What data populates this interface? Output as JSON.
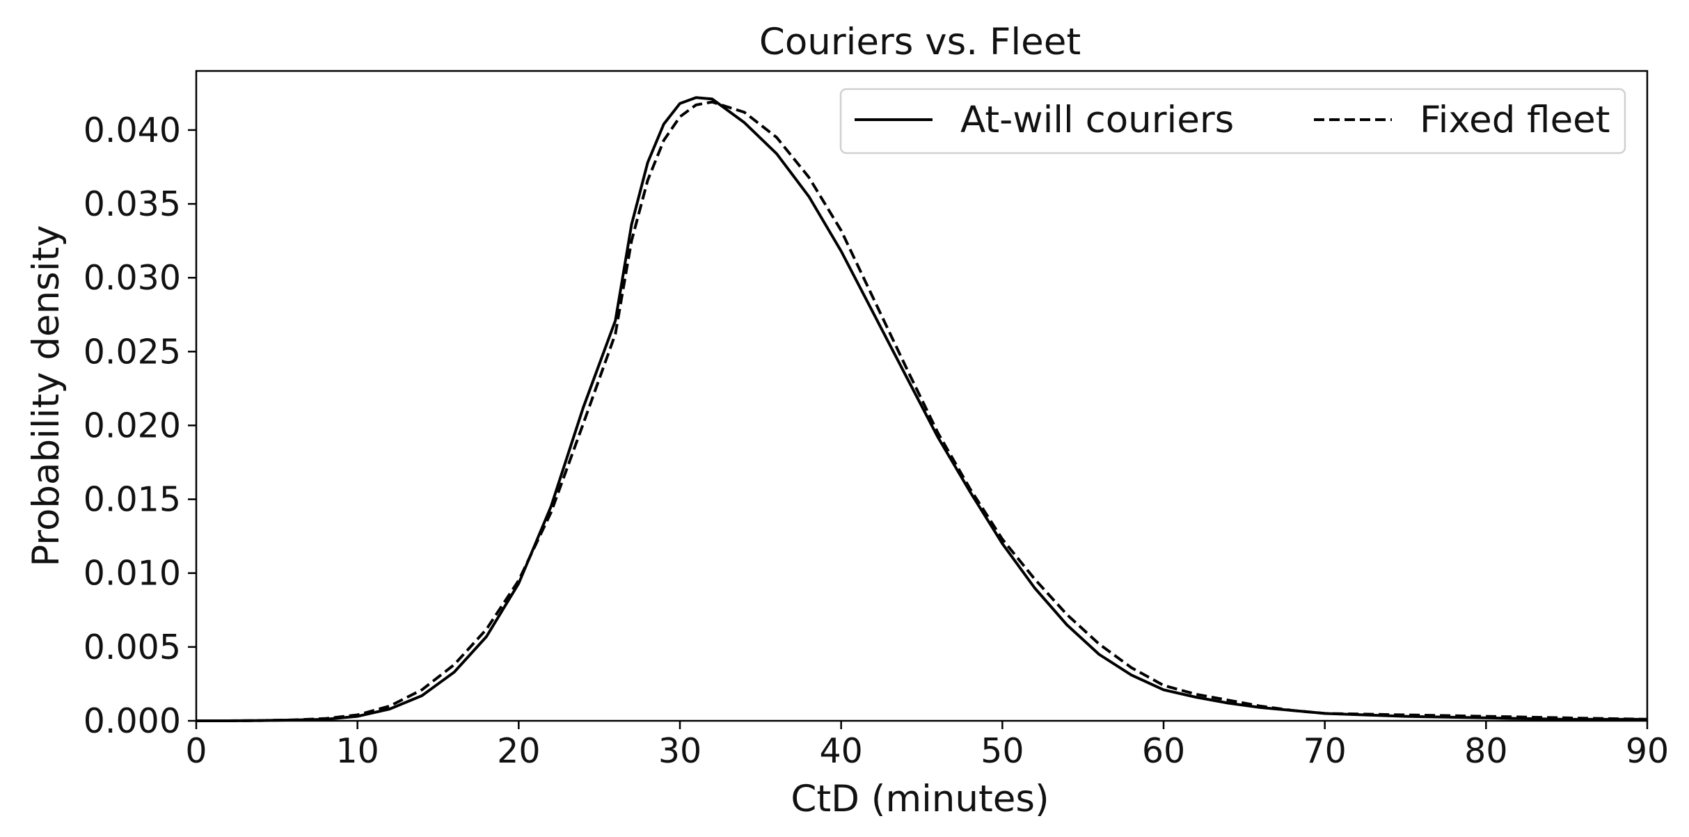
{
  "chart_data": {
    "type": "line",
    "title": "Couriers vs. Fleet",
    "xlabel": "CtD (minutes)",
    "ylabel": "Probability density",
    "xlim": [
      0,
      90
    ],
    "ylim": [
      0,
      0.044
    ],
    "xticks": [
      0,
      10,
      20,
      30,
      40,
      50,
      60,
      70,
      80,
      90
    ],
    "xtick_labels": [
      "0",
      "10",
      "20",
      "30",
      "40",
      "50",
      "60",
      "70",
      "80",
      "90"
    ],
    "yticks": [
      0,
      0.005,
      0.01,
      0.015,
      0.02,
      0.025,
      0.03,
      0.035,
      0.04
    ],
    "ytick_labels": [
      "0.000",
      "0.005",
      "0.010",
      "0.015",
      "0.020",
      "0.025",
      "0.030",
      "0.035",
      "0.040"
    ],
    "grid": false,
    "legend_position": "top-right",
    "series": [
      {
        "name": "At-will couriers",
        "style": "solid",
        "color": "#000000",
        "x": [
          0,
          2,
          4,
          6,
          8,
          10,
          12,
          14,
          16,
          18,
          20,
          22,
          24,
          26,
          27,
          28,
          29,
          30,
          31,
          32,
          34,
          36,
          38,
          40,
          42,
          44,
          46,
          48,
          50,
          52,
          54,
          56,
          58,
          60,
          62,
          64,
          66,
          68,
          70,
          75,
          80,
          85,
          90
        ],
        "y": [
          0,
          0,
          2e-05,
          5e-05,
          0.0001,
          0.0003,
          0.0008,
          0.0017,
          0.0033,
          0.0057,
          0.0093,
          0.0145,
          0.0212,
          0.0271,
          0.0336,
          0.0378,
          0.0404,
          0.0418,
          0.0422,
          0.0421,
          0.0405,
          0.0384,
          0.0355,
          0.0318,
          0.0276,
          0.0234,
          0.0192,
          0.0155,
          0.012,
          0.009,
          0.0065,
          0.0045,
          0.0031,
          0.0021,
          0.0016,
          0.0012,
          0.0009,
          0.0007,
          0.0005,
          0.0003,
          0.0002,
          0.0001,
          0.0001
        ]
      },
      {
        "name": "Fixed fleet",
        "style": "dashed",
        "color": "#000000",
        "x": [
          0,
          2,
          4,
          6,
          8,
          10,
          12,
          14,
          16,
          18,
          20,
          22,
          24,
          26,
          27,
          28,
          29,
          30,
          31,
          32,
          34,
          36,
          38,
          40,
          42,
          44,
          46,
          48,
          50,
          52,
          54,
          56,
          58,
          60,
          62,
          64,
          66,
          68,
          70,
          75,
          80,
          85,
          90
        ],
        "y": [
          0,
          0,
          2e-05,
          6e-05,
          0.00015,
          0.0004,
          0.001,
          0.0021,
          0.0038,
          0.0062,
          0.0095,
          0.0141,
          0.0201,
          0.0262,
          0.0325,
          0.0366,
          0.0393,
          0.0409,
          0.0417,
          0.0419,
          0.0412,
          0.0395,
          0.0368,
          0.0332,
          0.0286,
          0.024,
          0.0195,
          0.0157,
          0.0123,
          0.0096,
          0.0072,
          0.0052,
          0.0036,
          0.0024,
          0.0018,
          0.0014,
          0.001,
          0.0007,
          0.0005,
          0.0004,
          0.0003,
          0.0002,
          0.0001
        ]
      }
    ]
  }
}
